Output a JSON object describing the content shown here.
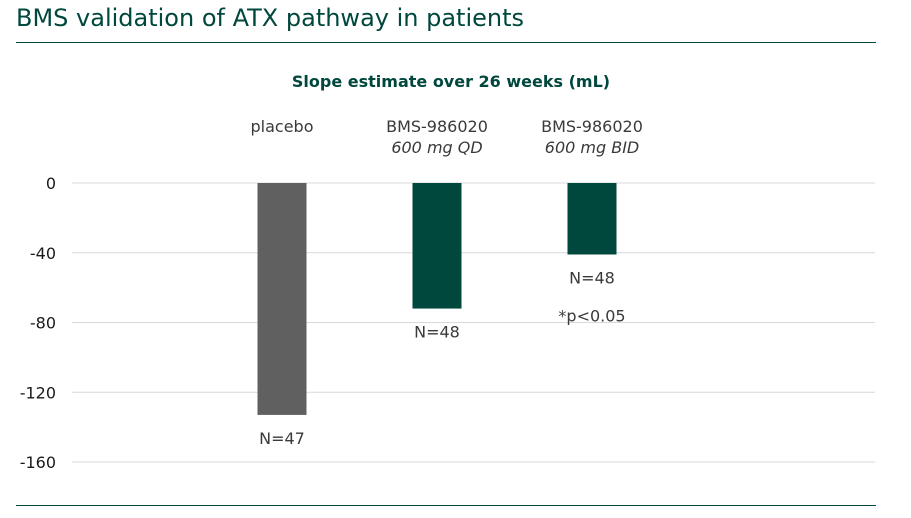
{
  "page": {
    "title": "BMS validation of ATX pathway in patients"
  },
  "chart_data": {
    "type": "bar",
    "title": "Slope estimate over 26 weeks (mL)",
    "xlabel": "",
    "ylabel": "",
    "ylim": [
      -160,
      0
    ],
    "yticks": [
      0,
      -40,
      -80,
      -120,
      -160
    ],
    "grid": true,
    "categories": [
      {
        "name": "placebo",
        "sub": "",
        "value": -133,
        "n_label": "N=47",
        "color": "#606060"
      },
      {
        "name": "BMS-986020",
        "sub": "600 mg QD",
        "value": -72,
        "n_label": "N=48",
        "color": "#00473d"
      },
      {
        "name": "BMS-986020",
        "sub": "600 mg BID",
        "value": -41,
        "n_label": "N=48",
        "color": "#00473d"
      }
    ],
    "annotations": [
      {
        "text": "*p<0.05",
        "category_index": 2
      }
    ]
  }
}
